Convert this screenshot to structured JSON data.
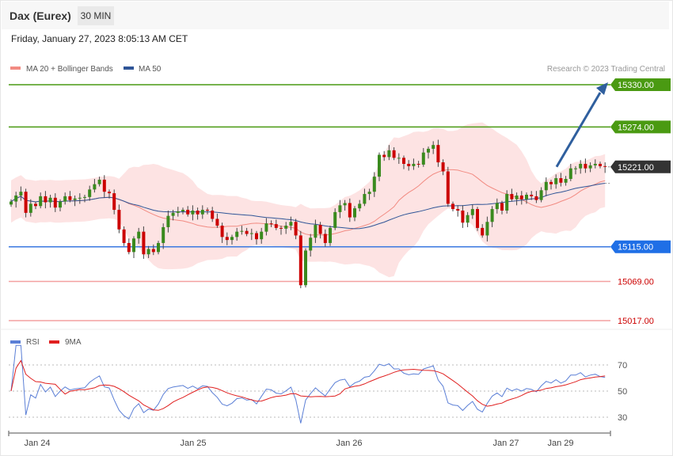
{
  "header": {
    "title": "Dax (Eurex)",
    "timeframe": "30 MIN"
  },
  "datetime": "Friday, January 27, 2023 8:05:13 AM CET",
  "legend": [
    {
      "label": "MA 20 + Bollinger Bands",
      "color": "#f28b82"
    },
    {
      "label": "MA 50",
      "color": "#2f5597"
    }
  ],
  "credit": "Research © 2023 Trading Central",
  "rsi_legend": [
    {
      "label": "RSI",
      "color": "#5b7fd6"
    },
    {
      "label": "9MA",
      "color": "#e02020"
    }
  ],
  "colors": {
    "up": "#3a8a1e",
    "down": "#cc0000",
    "band_fill": "#fde3e3",
    "ma20": "#f28b82",
    "ma50": "#2f5597",
    "target_arrow": "#2f5f9e"
  },
  "chart_data": {
    "type": "candlestick",
    "price_range": [
      14995,
      15358
    ],
    "x_labels": [
      {
        "label": "Jan 24",
        "index": 2
      },
      {
        "label": "Jan 25",
        "index": 32
      },
      {
        "label": "Jan 26",
        "index": 62
      },
      {
        "label": "Jan 27",
        "index": 92
      },
      {
        "label": "Jan 29",
        "index": 102
      }
    ],
    "levels": [
      {
        "value": 15330,
        "label": "15330.00",
        "kind": "resistance"
      },
      {
        "value": 15274,
        "label": "15274.00",
        "kind": "resistance"
      },
      {
        "value": 15221,
        "label": "15221.00",
        "kind": "current"
      },
      {
        "value": 15115,
        "label": "15115.00",
        "kind": "pivot"
      },
      {
        "value": 15069,
        "label": "15069.00",
        "kind": "support"
      },
      {
        "value": 15017,
        "label": "15017.00",
        "kind": "support"
      }
    ],
    "target": {
      "from_index": 105,
      "from_value": 15221,
      "to_index": 115,
      "to_value": 15330
    },
    "close": [
      15175,
      15183,
      15188,
      15160,
      15172,
      15169,
      15182,
      15174,
      15180,
      15167,
      15175,
      15182,
      15177,
      15179,
      15180,
      15181,
      15191,
      15198,
      15204,
      15188,
      15186,
      15164,
      15138,
      15120,
      15108,
      15126,
      15135,
      15105,
      15112,
      15108,
      15120,
      15141,
      15156,
      15160,
      15162,
      15164,
      15158,
      15163,
      15158,
      15164,
      15163,
      15152,
      15143,
      15128,
      15124,
      15128,
      15135,
      15136,
      15132,
      15133,
      15125,
      15135,
      15146,
      15145,
      15140,
      15139,
      15143,
      15148,
      15130,
      15064,
      15110,
      15127,
      15144,
      15132,
      15120,
      15140,
      15161,
      15170,
      15173,
      15154,
      15166,
      15172,
      15185,
      15188,
      15208,
      15237,
      15234,
      15243,
      15233,
      15233,
      15225,
      15222,
      15225,
      15224,
      15240,
      15245,
      15250,
      15227,
      15215,
      15172,
      15165,
      15163,
      15147,
      15157,
      15165,
      15140,
      15130,
      15148,
      15165,
      15173,
      15163,
      15185,
      15178,
      15183,
      15178,
      15184,
      15182,
      15177,
      15190,
      15201,
      15198,
      15206,
      15200,
      15205,
      15219,
      15219,
      15225,
      15219,
      15223,
      15225,
      15222,
      15221
    ],
    "rsi": {
      "levels": [
        70,
        50,
        30
      ]
    }
  }
}
